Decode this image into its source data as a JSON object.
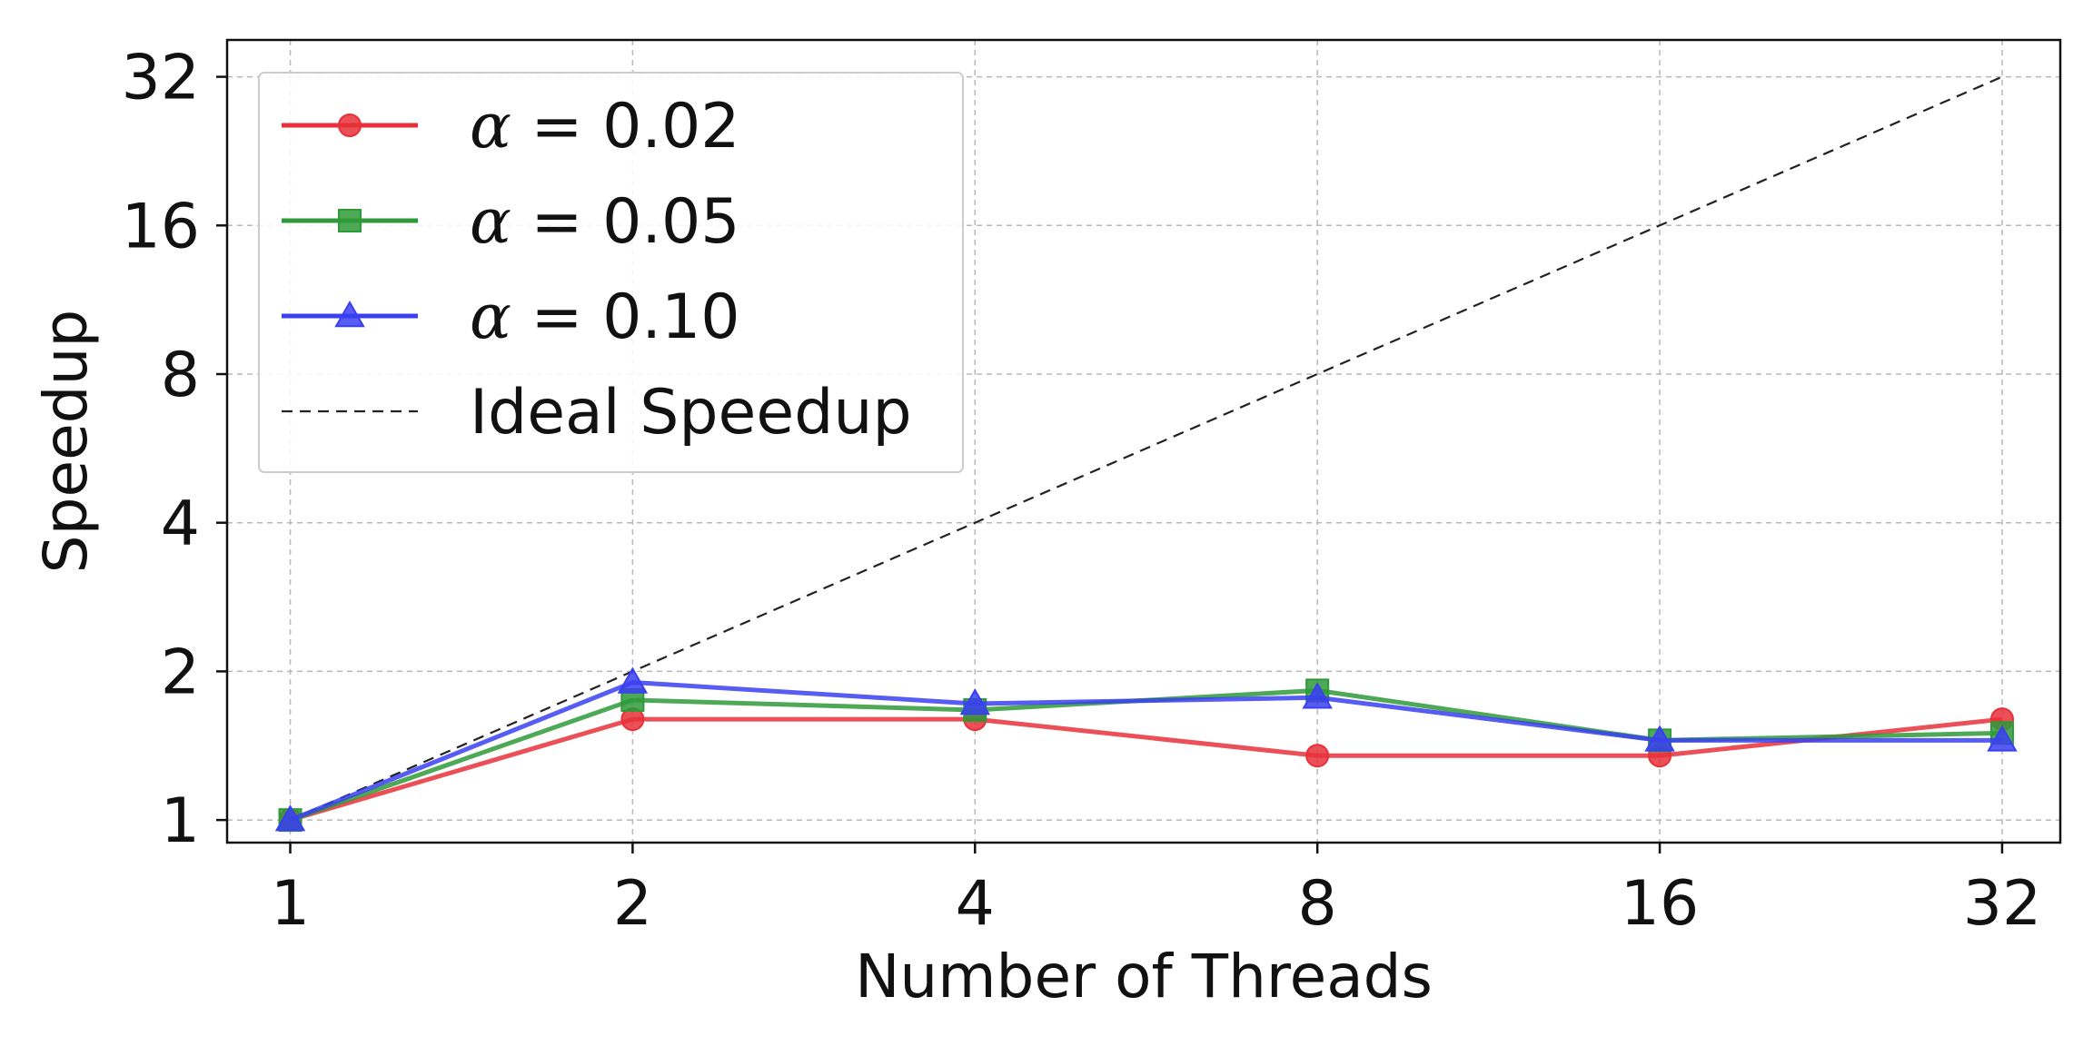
{
  "chart_data": {
    "type": "line",
    "title": "",
    "xlabel": "Number of Threads",
    "ylabel": "Speedup",
    "x": [
      1,
      2,
      4,
      8,
      16,
      32
    ],
    "x_tick_labels": [
      "1",
      "2",
      "4",
      "8",
      "16",
      "32"
    ],
    "y_ticks": [
      1,
      2,
      4,
      8,
      16,
      32
    ],
    "y_tick_labels": [
      "1",
      "2",
      "4",
      "8",
      "16",
      "32"
    ],
    "x_scale": "log2",
    "y_scale": "log2",
    "xlim": [
      0.88,
      36
    ],
    "ylim": [
      0.9,
      38
    ],
    "grid": true,
    "legend_position": "top-left",
    "series": [
      {
        "name": "α = 0.02",
        "alpha_value": "0.02",
        "color": "#e8303a",
        "marker": "circle",
        "values": [
          1.0,
          1.6,
          1.6,
          1.35,
          1.35,
          1.6
        ]
      },
      {
        "name": "α = 0.05",
        "alpha_value": "0.05",
        "color": "#2e9a38",
        "marker": "square",
        "values": [
          1.0,
          1.75,
          1.67,
          1.83,
          1.45,
          1.5
        ]
      },
      {
        "name": "α = 0.10",
        "alpha_value": "0.10",
        "color": "#3a3ff0",
        "marker": "triangle",
        "values": [
          1.0,
          1.9,
          1.72,
          1.77,
          1.45,
          1.45
        ]
      }
    ],
    "reference_line": {
      "name": "Ideal Speedup",
      "color": "#222222",
      "style": "dashed",
      "values": [
        1,
        2,
        4,
        8,
        16,
        32
      ]
    }
  }
}
